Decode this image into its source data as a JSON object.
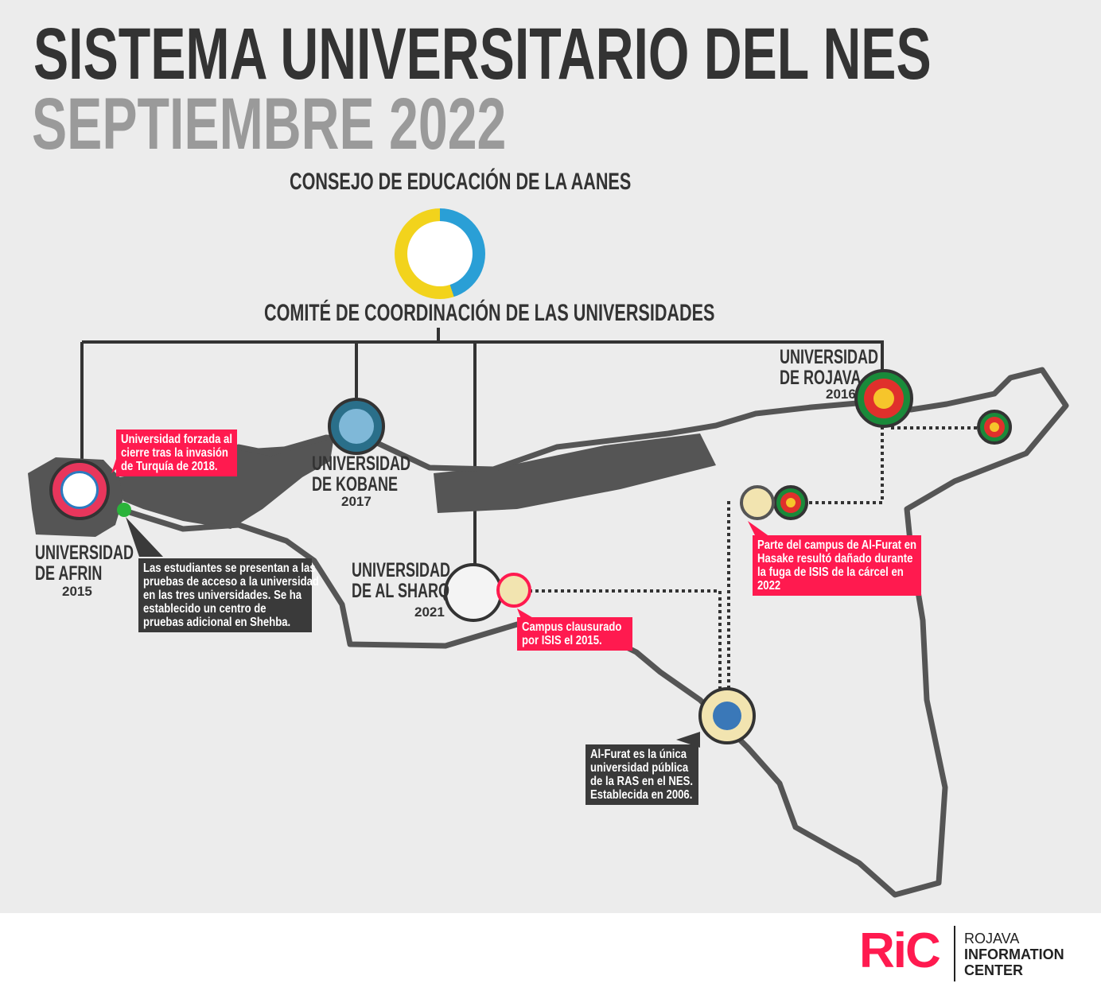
{
  "title": "SISTEMA UNIVERSITARIO DEL NES",
  "subtitle": "SEPTIEMBRE 2022",
  "council": "CONSEJO DE EDUCACIÓN DE LA AANES",
  "committee": "COMITÉ DE COORDINACIÓN DE LAS UNIVERSIDADES",
  "universities": [
    {
      "name1": "UNIVERSIDAD",
      "name2": "DE AFRIN",
      "year": "2015"
    },
    {
      "name1": "UNIVERSIDAD",
      "name2": "DE KOBANE",
      "year": "2017"
    },
    {
      "name1": "UNIVERSIDAD",
      "name2": "DE AL SHARQ",
      "year": "2021"
    },
    {
      "name1": "UNIVERSIDAD",
      "name2": "DE ROJAVA",
      "year": "2016"
    }
  ],
  "notes": {
    "afrin": [
      "Universidad forzada al",
      "cierre tras la invasión",
      "de Turquía de 2018."
    ],
    "shehba": [
      "Las estudiantes se presentan a las",
      "pruebas de acceso a la universidad",
      "en las tres universidades. Se ha",
      "establecido un centro de",
      "pruebas adicional en Shehba."
    ],
    "raqqa": [
      "Campus clausurado",
      " por ISIS el 2015."
    ],
    "hasake": [
      "Parte del campus de Al-Furat en",
      "Hasake resultó dañado durante",
      "la fuga de ISIS de la cárcel en",
      "2022"
    ],
    "alfurat": [
      " Al-Furat es la única",
      "universidad pública",
      "de la RAS en el NES.",
      "Establecida en 2006."
    ]
  },
  "footer": {
    "logo_text": "RiC",
    "line1": "ROJAVA",
    "line2": "INFORMATION",
    "line3": "CENTER"
  },
  "colors": {
    "accent": "#ff1a4f",
    "dark": "#3a3a3a",
    "map": "#555555"
  }
}
